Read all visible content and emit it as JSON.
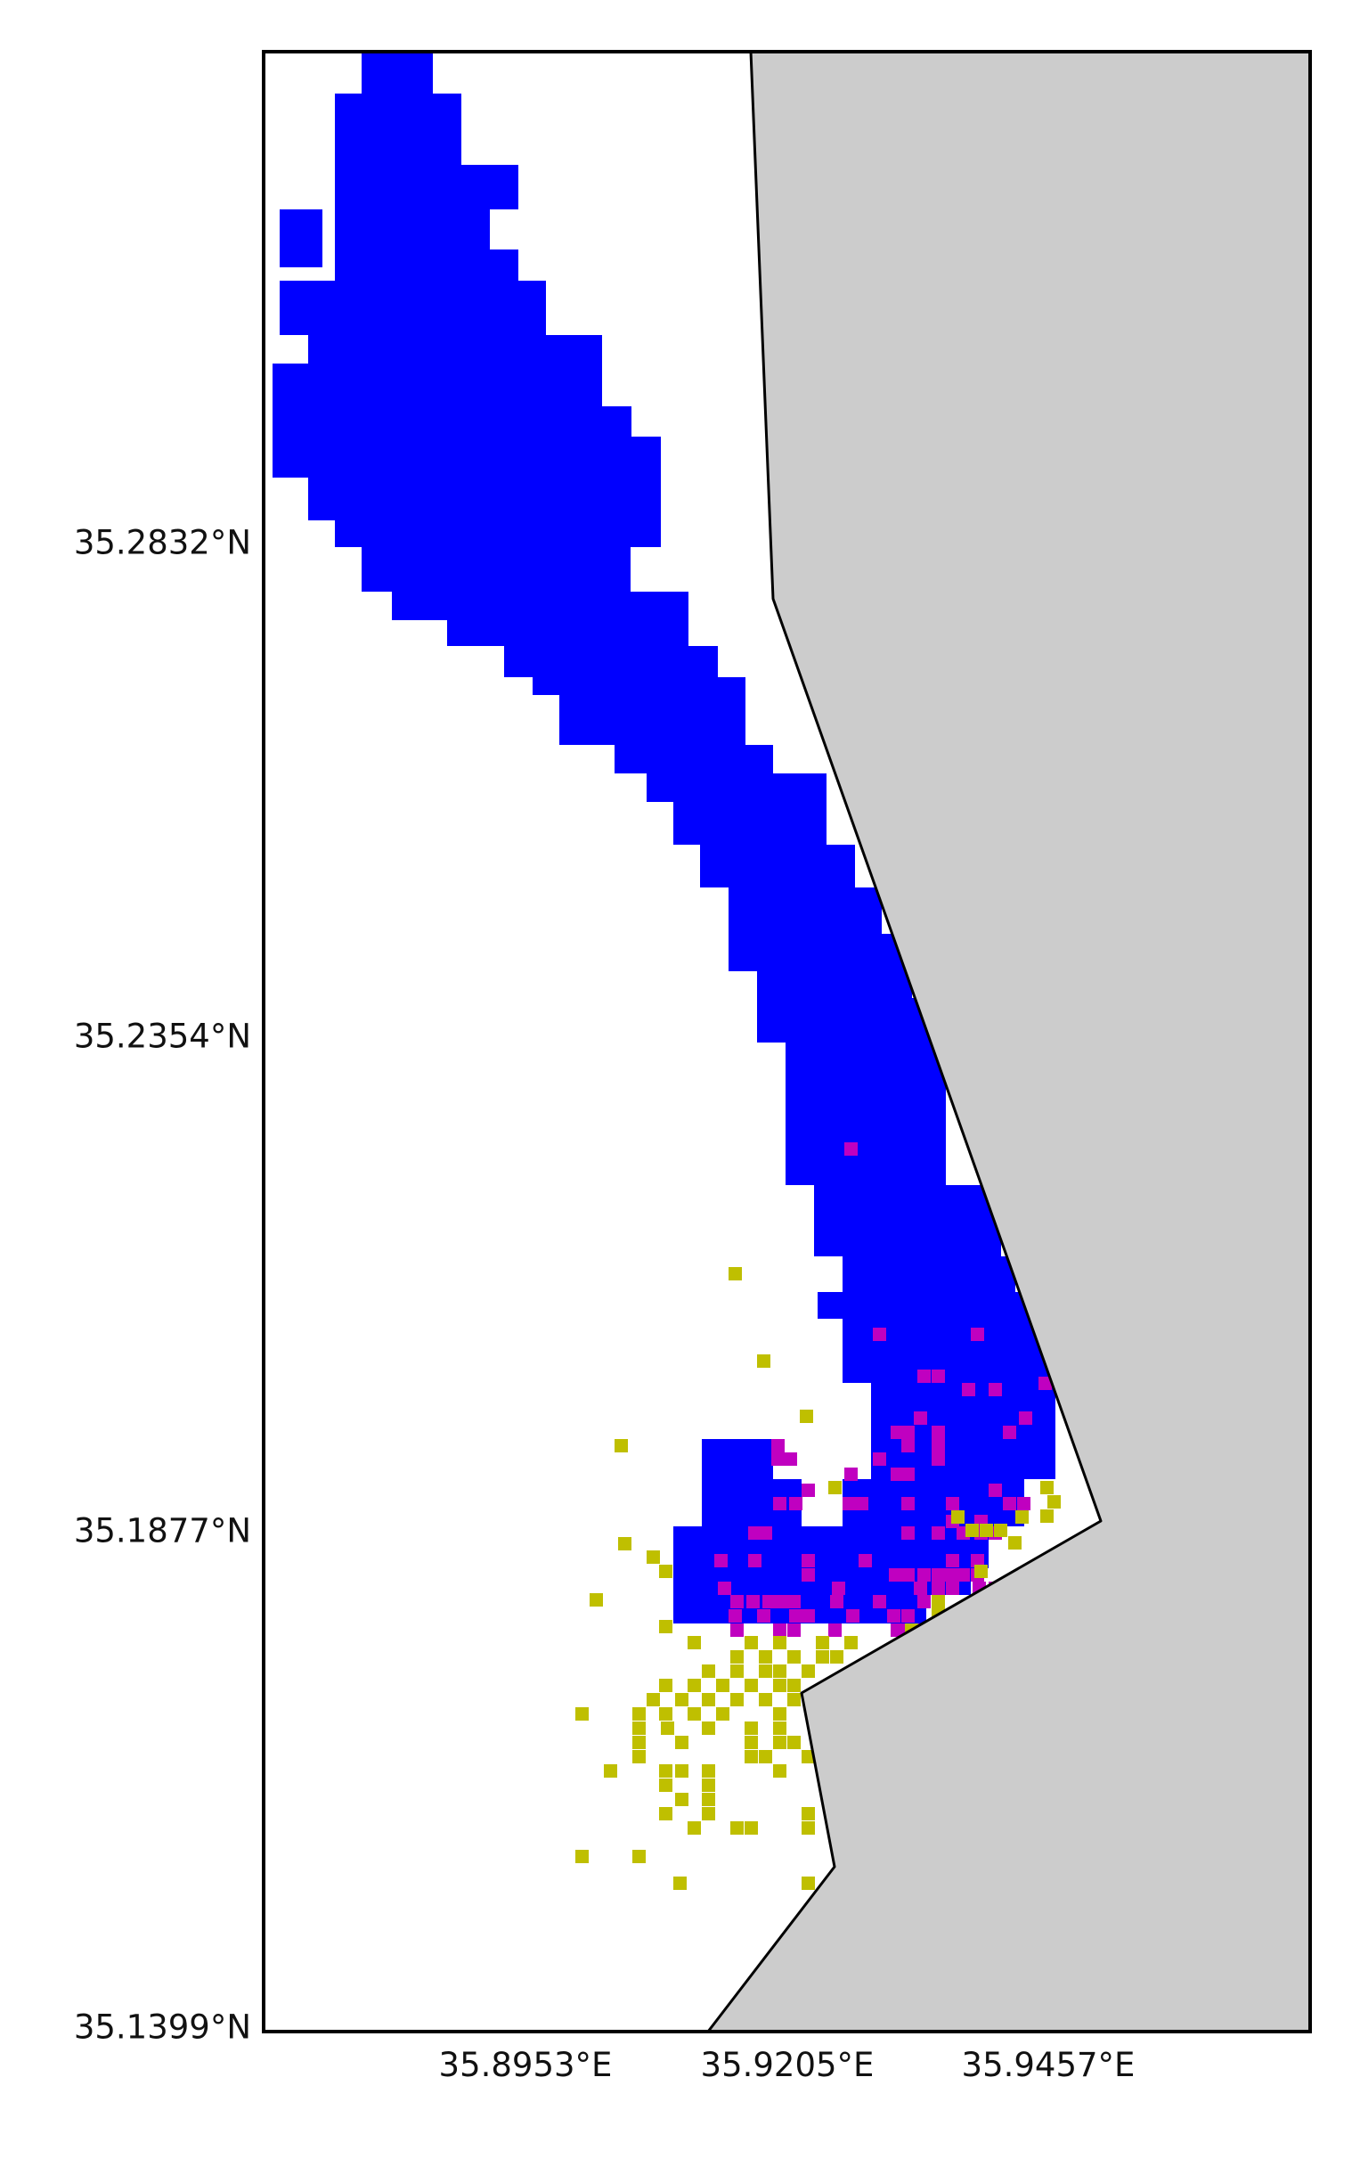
{
  "map": {
    "y_tick_labels": [
      "35.2832°N",
      "35.2354°N",
      "35.1877°N",
      "35.1399°N"
    ],
    "x_tick_labels": [
      "35.8953°E",
      "35.9205°E",
      "35.9457°E"
    ],
    "colors": {
      "land": "#cccccc",
      "water": "#ffffff",
      "coastline": "#000000",
      "frame": "#000000",
      "class_blue": "#0000ff",
      "class_magenta": "#c000c0",
      "class_olive": "#bfbf00"
    }
  }
}
